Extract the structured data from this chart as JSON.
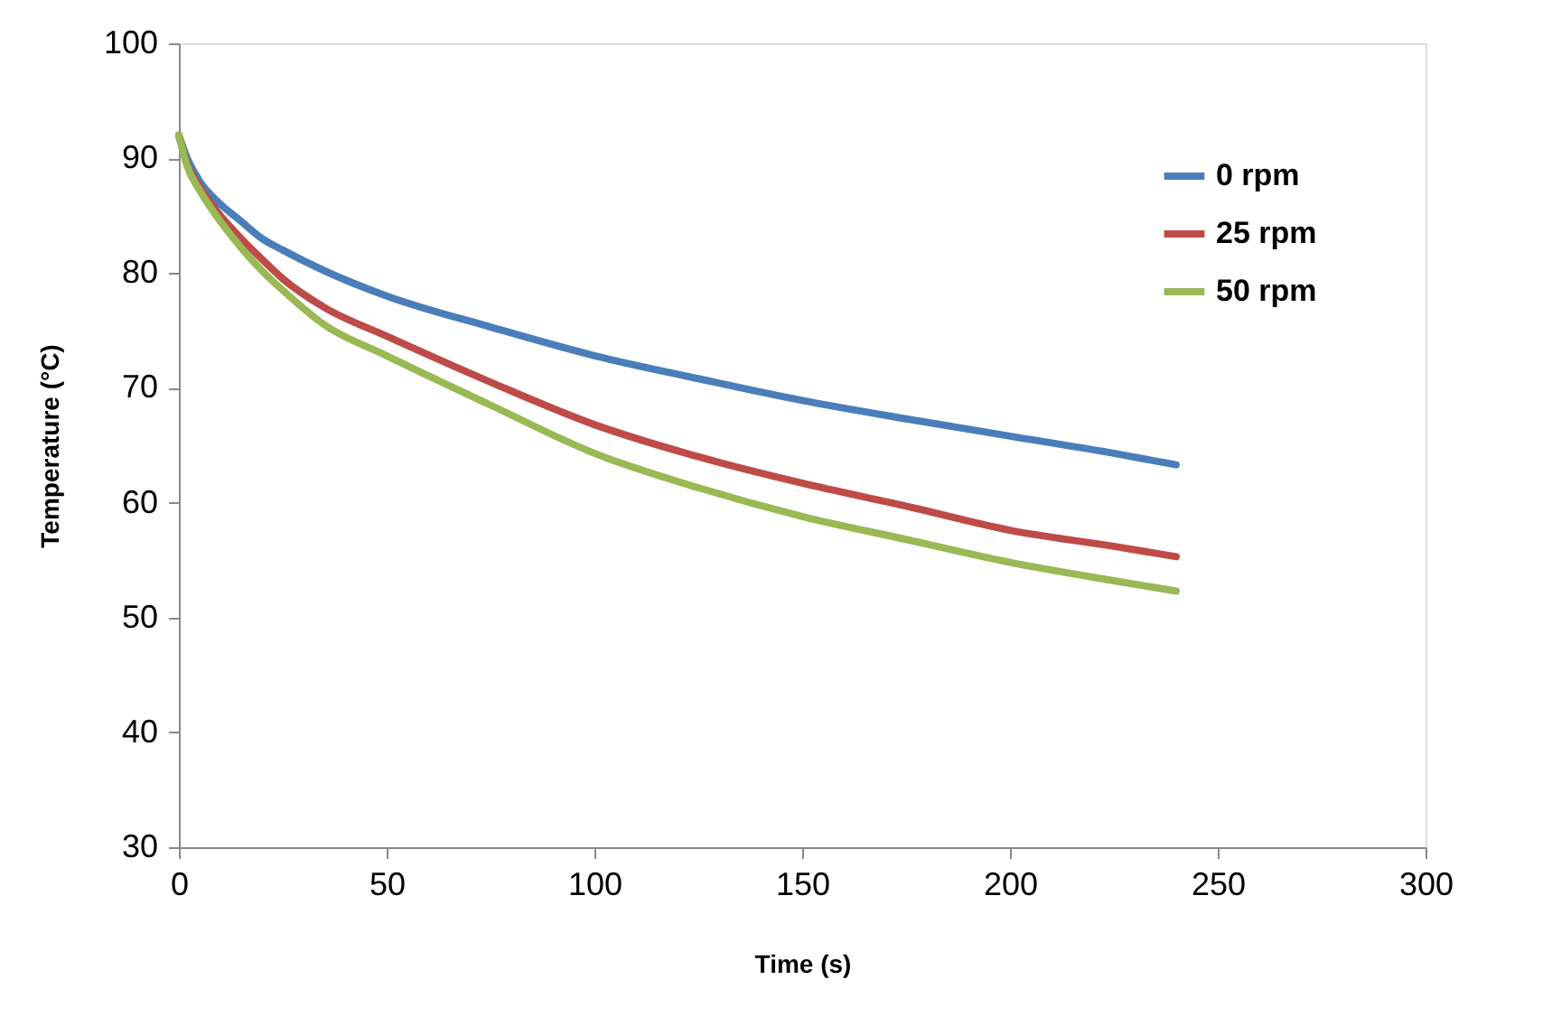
{
  "chart_data": {
    "type": "line",
    "xlabel": "Time (s)",
    "ylabel": "Temperature (°C)",
    "x": [
      0,
      2,
      5,
      10,
      15,
      20,
      25,
      35,
      50,
      75,
      100,
      125,
      150,
      175,
      200,
      225,
      240
    ],
    "series": [
      {
        "name": "0 rpm",
        "color": "#4a7ebb",
        "values": [
          92,
          90,
          88,
          86,
          84.5,
          83,
          82,
          80.2,
          78,
          75.3,
          72.8,
          70.8,
          68.9,
          67.3,
          65.8,
          64.3,
          63.3
        ]
      },
      {
        "name": "25 rpm",
        "color": "#be4b48",
        "values": [
          92,
          89.5,
          87.5,
          85,
          83,
          81.2,
          79.5,
          77,
          74.5,
          70.5,
          66.8,
          64,
          61.7,
          59.7,
          57.6,
          56.2,
          55.3
        ]
      },
      {
        "name": "50 rpm",
        "color": "#98b954",
        "values": [
          92,
          89.3,
          87.2,
          84.5,
          82.2,
          80.2,
          78.5,
          75.5,
          72.8,
          68.5,
          64.3,
          61.3,
          58.8,
          56.8,
          54.8,
          53.2,
          52.3
        ]
      }
    ],
    "xlim": [
      0,
      300
    ],
    "xticks": [
      0,
      50,
      100,
      150,
      200,
      250,
      300
    ],
    "ylim": [
      30,
      100
    ],
    "yticks": [
      30,
      40,
      50,
      60,
      70,
      80,
      90,
      100
    ],
    "grid": false,
    "legend": "top right",
    "marker": "none",
    "line_style": "solid"
  }
}
